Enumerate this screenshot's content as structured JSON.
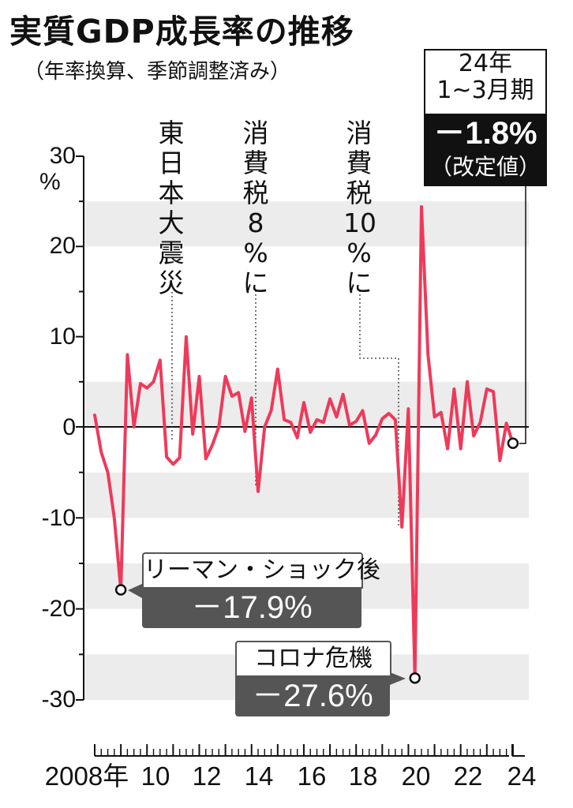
{
  "title": "実質GDP成長率の推移",
  "subtitle": "（年率換算、季節調整済み）",
  "colors": {
    "line": "#ee3a5a",
    "band": "#ececec",
    "axis": "#111111",
    "callout": "#555555"
  },
  "annotations": {
    "shinsai": "東\n日\n本\n大\n震\n災",
    "tax8": "消\n費\n税\n8\n%\nに",
    "tax10": "消\n費\n税\n10\n%\nに"
  },
  "latest": {
    "period_year": "24年",
    "period_quarter": "1~3月期",
    "value": "－1.8%",
    "note": "（改定値）"
  },
  "lehman": {
    "label": "リーマン・ショック後",
    "value": "－17.9%"
  },
  "corona": {
    "label": "コロナ危機",
    "value": "－27.6%"
  },
  "chart_data": {
    "type": "line",
    "title": "実質GDP成長率の推移",
    "subtitle": "（年率換算、季節調整済み）",
    "ylabel": "%",
    "ylim": [
      -30,
      30
    ],
    "yticks": [
      "30",
      "20",
      "10",
      "0",
      "-10",
      "-20",
      "-30"
    ],
    "xticks": [
      "2008年",
      "10",
      "12",
      "14",
      "16",
      "18",
      "20",
      "22",
      "24"
    ],
    "grid": "alternating horizontal bands",
    "series": [
      {
        "x": [
          "2008Q1",
          "2008Q2",
          "2008Q3",
          "2008Q4",
          "2009Q1",
          "2009Q2",
          "2009Q3",
          "2009Q4",
          "2010Q1",
          "2010Q2",
          "2010Q3",
          "2010Q4",
          "2011Q1",
          "2011Q2",
          "2011Q3",
          "2011Q4",
          "2012Q1",
          "2012Q2",
          "2012Q3",
          "2012Q4",
          "2013Q1",
          "2013Q2",
          "2013Q3",
          "2013Q4",
          "2014Q1",
          "2014Q2",
          "2014Q3",
          "2014Q4",
          "2015Q1",
          "2015Q2",
          "2015Q3",
          "2015Q4",
          "2016Q1",
          "2016Q2",
          "2016Q3",
          "2016Q4",
          "2017Q1",
          "2017Q2",
          "2017Q3",
          "2017Q4",
          "2018Q1",
          "2018Q2",
          "2018Q3",
          "2018Q4",
          "2019Q1",
          "2019Q2",
          "2019Q3",
          "2019Q4",
          "2020Q1",
          "2020Q2",
          "2020Q3",
          "2020Q4",
          "2021Q1",
          "2021Q2",
          "2021Q3",
          "2021Q4",
          "2022Q1",
          "2022Q2",
          "2022Q3",
          "2022Q4",
          "2023Q1",
          "2023Q2",
          "2023Q3",
          "2023Q4",
          "2024Q1"
        ],
        "values": [
          1.3,
          -2.8,
          -5.0,
          -10.0,
          -17.9,
          8.0,
          0.0,
          4.8,
          4.3,
          5.0,
          7.4,
          -3.3,
          -4.1,
          -3.4,
          10.0,
          -0.8,
          5.6,
          -3.5,
          -2.0,
          0.0,
          5.6,
          3.4,
          3.8,
          -0.5,
          3.2,
          -7.1,
          0.0,
          1.8,
          6.4,
          0.8,
          0.5,
          -1.2,
          2.7,
          -0.6,
          0.8,
          0.5,
          3.1,
          1.1,
          3.6,
          0.2,
          0.6,
          1.8,
          -1.8,
          -0.9,
          0.9,
          1.5,
          0.8,
          -11.0,
          2.0,
          -27.6,
          24.4,
          8.0,
          1.1,
          1.6,
          -2.4,
          4.2,
          -2.4,
          5.0,
          -1.0,
          0.5,
          4.2,
          3.9,
          -3.7,
          0.4,
          -1.8
        ]
      }
    ],
    "markers": [
      {
        "x": "2009Q1",
        "y": -17.9
      },
      {
        "x": "2020Q2",
        "y": -27.6
      },
      {
        "x": "2024Q1",
        "y": -1.8
      }
    ]
  }
}
